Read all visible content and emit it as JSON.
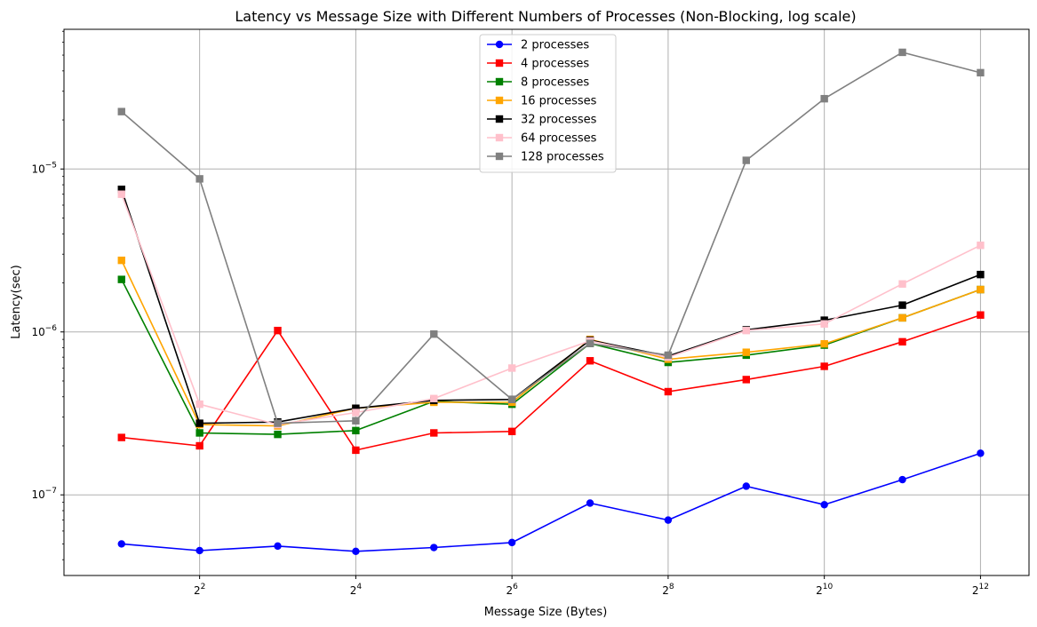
{
  "chart_data": {
    "type": "line",
    "title": "Latency vs Message Size with Different Numbers of Processes (Non-Blocking, log scale)",
    "xlabel": "Message Size (Bytes)",
    "ylabel": "Latency(sec)",
    "x_scale": "log2",
    "y_scale": "log10",
    "x_ticks": [
      {
        "base": "2",
        "exp": "2",
        "value": 4
      },
      {
        "base": "2",
        "exp": "4",
        "value": 16
      },
      {
        "base": "2",
        "exp": "6",
        "value": 64
      },
      {
        "base": "2",
        "exp": "8",
        "value": 256
      },
      {
        "base": "2",
        "exp": "10",
        "value": 1024
      },
      {
        "base": "2",
        "exp": "12",
        "value": 4096
      }
    ],
    "y_ticks": [
      {
        "base": "10",
        "exp": "−7",
        "value": 1e-07
      },
      {
        "base": "10",
        "exp": "−6",
        "value": 1e-06
      },
      {
        "base": "10",
        "exp": "−5",
        "value": 1e-05
      }
    ],
    "xlim": [
      1.2,
      6300
    ],
    "ylim": [
      3.2e-08,
      7.2e-05
    ],
    "grid": true,
    "legend_position": "top-center",
    "x": [
      2,
      4,
      8,
      16,
      32,
      64,
      128,
      256,
      512,
      1024,
      2048,
      4096
    ],
    "series": [
      {
        "name": "2 processes",
        "color": "#0000ff",
        "marker": "circle",
        "values": [
          5e-08,
          4.55e-08,
          4.85e-08,
          4.5e-08,
          4.75e-08,
          5.1e-08,
          8.9e-08,
          7e-08,
          1.13e-07,
          8.7e-08,
          1.24e-07,
          1.8e-07
        ]
      },
      {
        "name": "4 processes",
        "color": "#ff0000",
        "marker": "square",
        "values": [
          2.25e-07,
          2e-07,
          1.02e-06,
          1.88e-07,
          2.4e-07,
          2.45e-07,
          6.65e-07,
          4.3e-07,
          5.1e-07,
          6.15e-07,
          8.7e-07,
          1.27e-06
        ]
      },
      {
        "name": "8 processes",
        "color": "#008000",
        "marker": "square",
        "values": [
          2.1e-06,
          2.4e-07,
          2.35e-07,
          2.48e-07,
          3.75e-07,
          3.6e-07,
          8.5e-07,
          6.5e-07,
          7.2e-07,
          8.3e-07,
          1.22e-06,
          1.82e-06
        ]
      },
      {
        "name": "16 processes",
        "color": "#ffa500",
        "marker": "square",
        "values": [
          2.75e-06,
          2.7e-07,
          2.65e-07,
          3.4e-07,
          3.7e-07,
          3.7e-07,
          9e-07,
          6.8e-07,
          7.5e-07,
          8.45e-07,
          1.22e-06,
          1.82e-06
        ]
      },
      {
        "name": "32 processes",
        "color": "#000000",
        "marker": "square",
        "values": [
          7.5e-06,
          2.75e-07,
          2.8e-07,
          3.4e-07,
          3.8e-07,
          3.85e-07,
          8.9e-07,
          7.1e-07,
          1.03e-06,
          1.18e-06,
          1.46e-06,
          2.25e-06
        ]
      },
      {
        "name": "64 processes",
        "color": "#ffc0cb",
        "marker": "square",
        "values": [
          7e-06,
          3.6e-07,
          2.7e-07,
          3.2e-07,
          3.9e-07,
          6e-07,
          8.8e-07,
          7e-07,
          1.02e-06,
          1.12e-06,
          1.97e-06,
          3.4e-06
        ]
      },
      {
        "name": "128 processes",
        "color": "#808080",
        "marker": "square",
        "values": [
          2.25e-05,
          8.7e-06,
          2.75e-07,
          2.85e-07,
          9.7e-07,
          3.85e-07,
          8.5e-07,
          7.2e-07,
          1.13e-05,
          2.7e-05,
          5.2e-05,
          3.9e-05
        ]
      }
    ]
  }
}
